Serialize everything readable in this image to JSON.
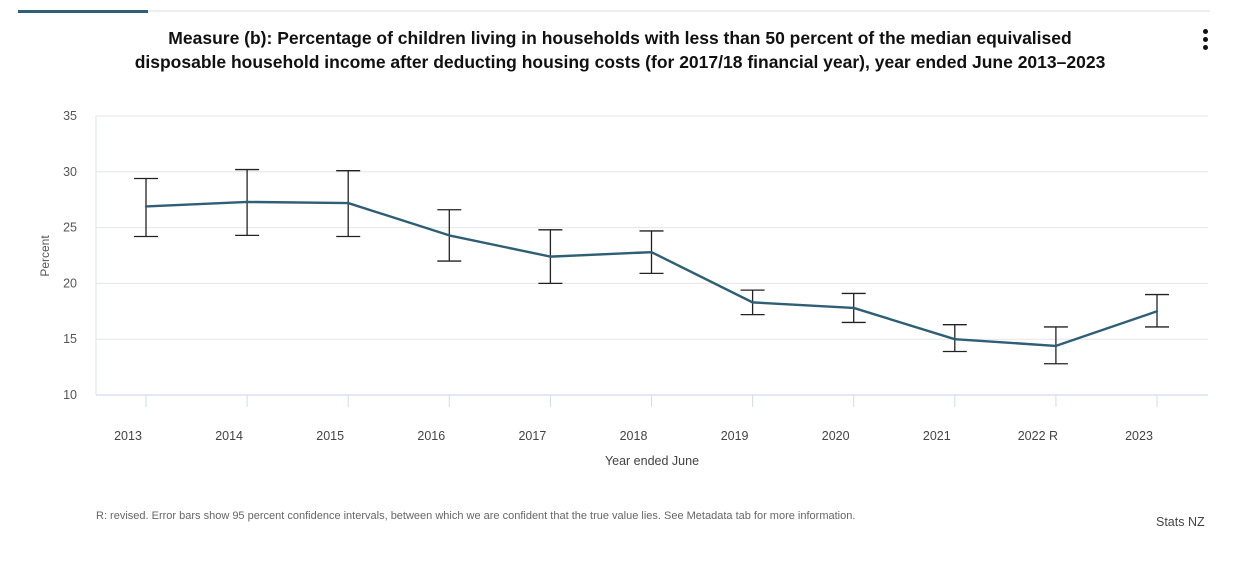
{
  "header": {
    "active_tab_indicator": true,
    "menu_icon": "kebab-vertical-icon"
  },
  "chart_data": {
    "type": "line",
    "title_line1": "Measure (b): Percentage of children living in households with less than 50 percent of the median equivalised",
    "title_line2": "disposable household income after deducting housing costs (for 2017/18 financial year), year ended June 2013–2023",
    "xlabel": "Year ended June",
    "ylabel": "Percent",
    "categories": [
      "2013",
      "2014",
      "2015",
      "2016",
      "2017",
      "2018",
      "2019",
      "2020",
      "2021",
      "2022 R",
      "2023"
    ],
    "ylim": [
      10,
      35
    ],
    "yticks": [
      10,
      15,
      20,
      25,
      30,
      35
    ],
    "grid": true,
    "series": [
      {
        "name": "Percentage of children",
        "color": "#2e5f74",
        "values": [
          26.9,
          27.3,
          27.2,
          24.3,
          22.4,
          22.8,
          18.3,
          17.8,
          15.0,
          14.4,
          17.5
        ],
        "ci_lower": [
          24.2,
          24.3,
          24.2,
          22.0,
          20.0,
          20.9,
          17.2,
          16.5,
          13.9,
          12.8,
          16.1
        ],
        "ci_upper": [
          29.4,
          30.2,
          30.1,
          26.6,
          24.8,
          24.7,
          19.4,
          19.1,
          16.3,
          16.1,
          19.0
        ]
      }
    ],
    "error_bar_color": "#222222",
    "footnote": "R: revised. Error bars show 95 percent confidence intervals, between which we are confident that the true value lies. See Metadata tab for more information.",
    "credit": "Stats NZ"
  }
}
